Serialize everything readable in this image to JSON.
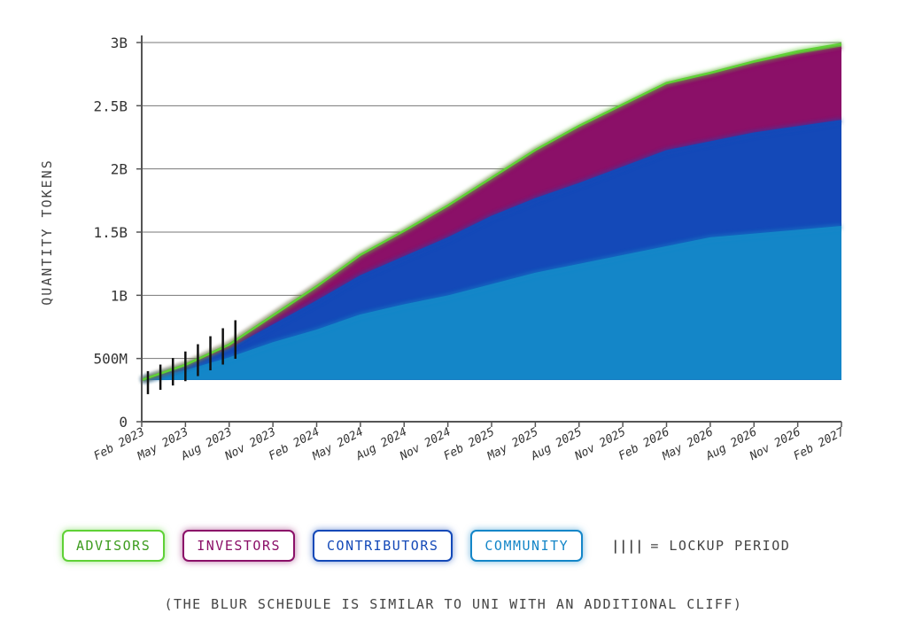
{
  "chart_data": {
    "type": "area",
    "stacked": true,
    "title": "",
    "xlabel": "",
    "ylabel": "QUANTITY TOKENS",
    "x": [
      "Feb 2023",
      "May 2023",
      "Aug 2023",
      "Nov 2023",
      "Feb 2024",
      "May 2024",
      "Aug 2024",
      "Nov 2024",
      "Feb 2025",
      "May 2025",
      "Aug 2025",
      "Nov 2025",
      "Feb 2026",
      "May 2026",
      "Aug 2026",
      "Nov 2026",
      "Feb 2027"
    ],
    "ylim": [
      0,
      3000000000
    ],
    "yticks": [
      0,
      500000000,
      1000000000,
      1500000000,
      2000000000,
      2500000000,
      3000000000
    ],
    "ytick_labels": [
      "0",
      "500M",
      "1B",
      "1.5B",
      "2B",
      "2.5B",
      "3B"
    ],
    "grid": true,
    "baseline": 330000000,
    "series": [
      {
        "name": "COMMUNITY",
        "color": "#1486c8",
        "values": [
          330000000,
          400000000,
          500000000,
          620000000,
          720000000,
          840000000,
          920000000,
          990000000,
          1080000000,
          1170000000,
          1240000000,
          1310000000,
          1380000000,
          1450000000,
          1480000000,
          1510000000,
          1540000000
        ]
      },
      {
        "name": "CONTRIBUTORS",
        "color": "#1449b8",
        "values": [
          0,
          30000000,
          70000000,
          140000000,
          230000000,
          310000000,
          380000000,
          460000000,
          540000000,
          590000000,
          640000000,
          700000000,
          760000000,
          760000000,
          800000000,
          820000000,
          840000000
        ]
      },
      {
        "name": "INVESTORS",
        "color": "#8b1068",
        "values": [
          0,
          20000000,
          40000000,
          80000000,
          120000000,
          160000000,
          200000000,
          250000000,
          300000000,
          380000000,
          440000000,
          480000000,
          520000000,
          530000000,
          550000000,
          570000000,
          580000000
        ]
      },
      {
        "name": "ADVISORS",
        "color": "#5fd136",
        "values": [
          0,
          0,
          0,
          0,
          0,
          10000000,
          10000000,
          10000000,
          10000000,
          10000000,
          20000000,
          20000000,
          20000000,
          20000000,
          20000000,
          30000000,
          30000000
        ]
      }
    ],
    "lockup_period": {
      "start": "Feb 2023",
      "end": "Aug 2023"
    },
    "legend": {
      "items": [
        {
          "name": "ADVISORS",
          "color": "#5fd136",
          "text_color": "#3d9c1f"
        },
        {
          "name": "INVESTORS",
          "color": "#8b1068",
          "text_color": "#8b1068"
        },
        {
          "name": "CONTRIBUTORS",
          "color": "#1449b8",
          "text_color": "#1449b8"
        },
        {
          "name": "COMMUNITY",
          "color": "#1486c8",
          "text_color": "#1486c8"
        }
      ],
      "lockup_symbol": "||||",
      "lockup_label": "= LOCKUP PERIOD"
    },
    "footnote": "(THE BLUR SCHEDULE IS SIMILAR TO UNI WITH AN ADDITIONAL CLIFF)"
  }
}
